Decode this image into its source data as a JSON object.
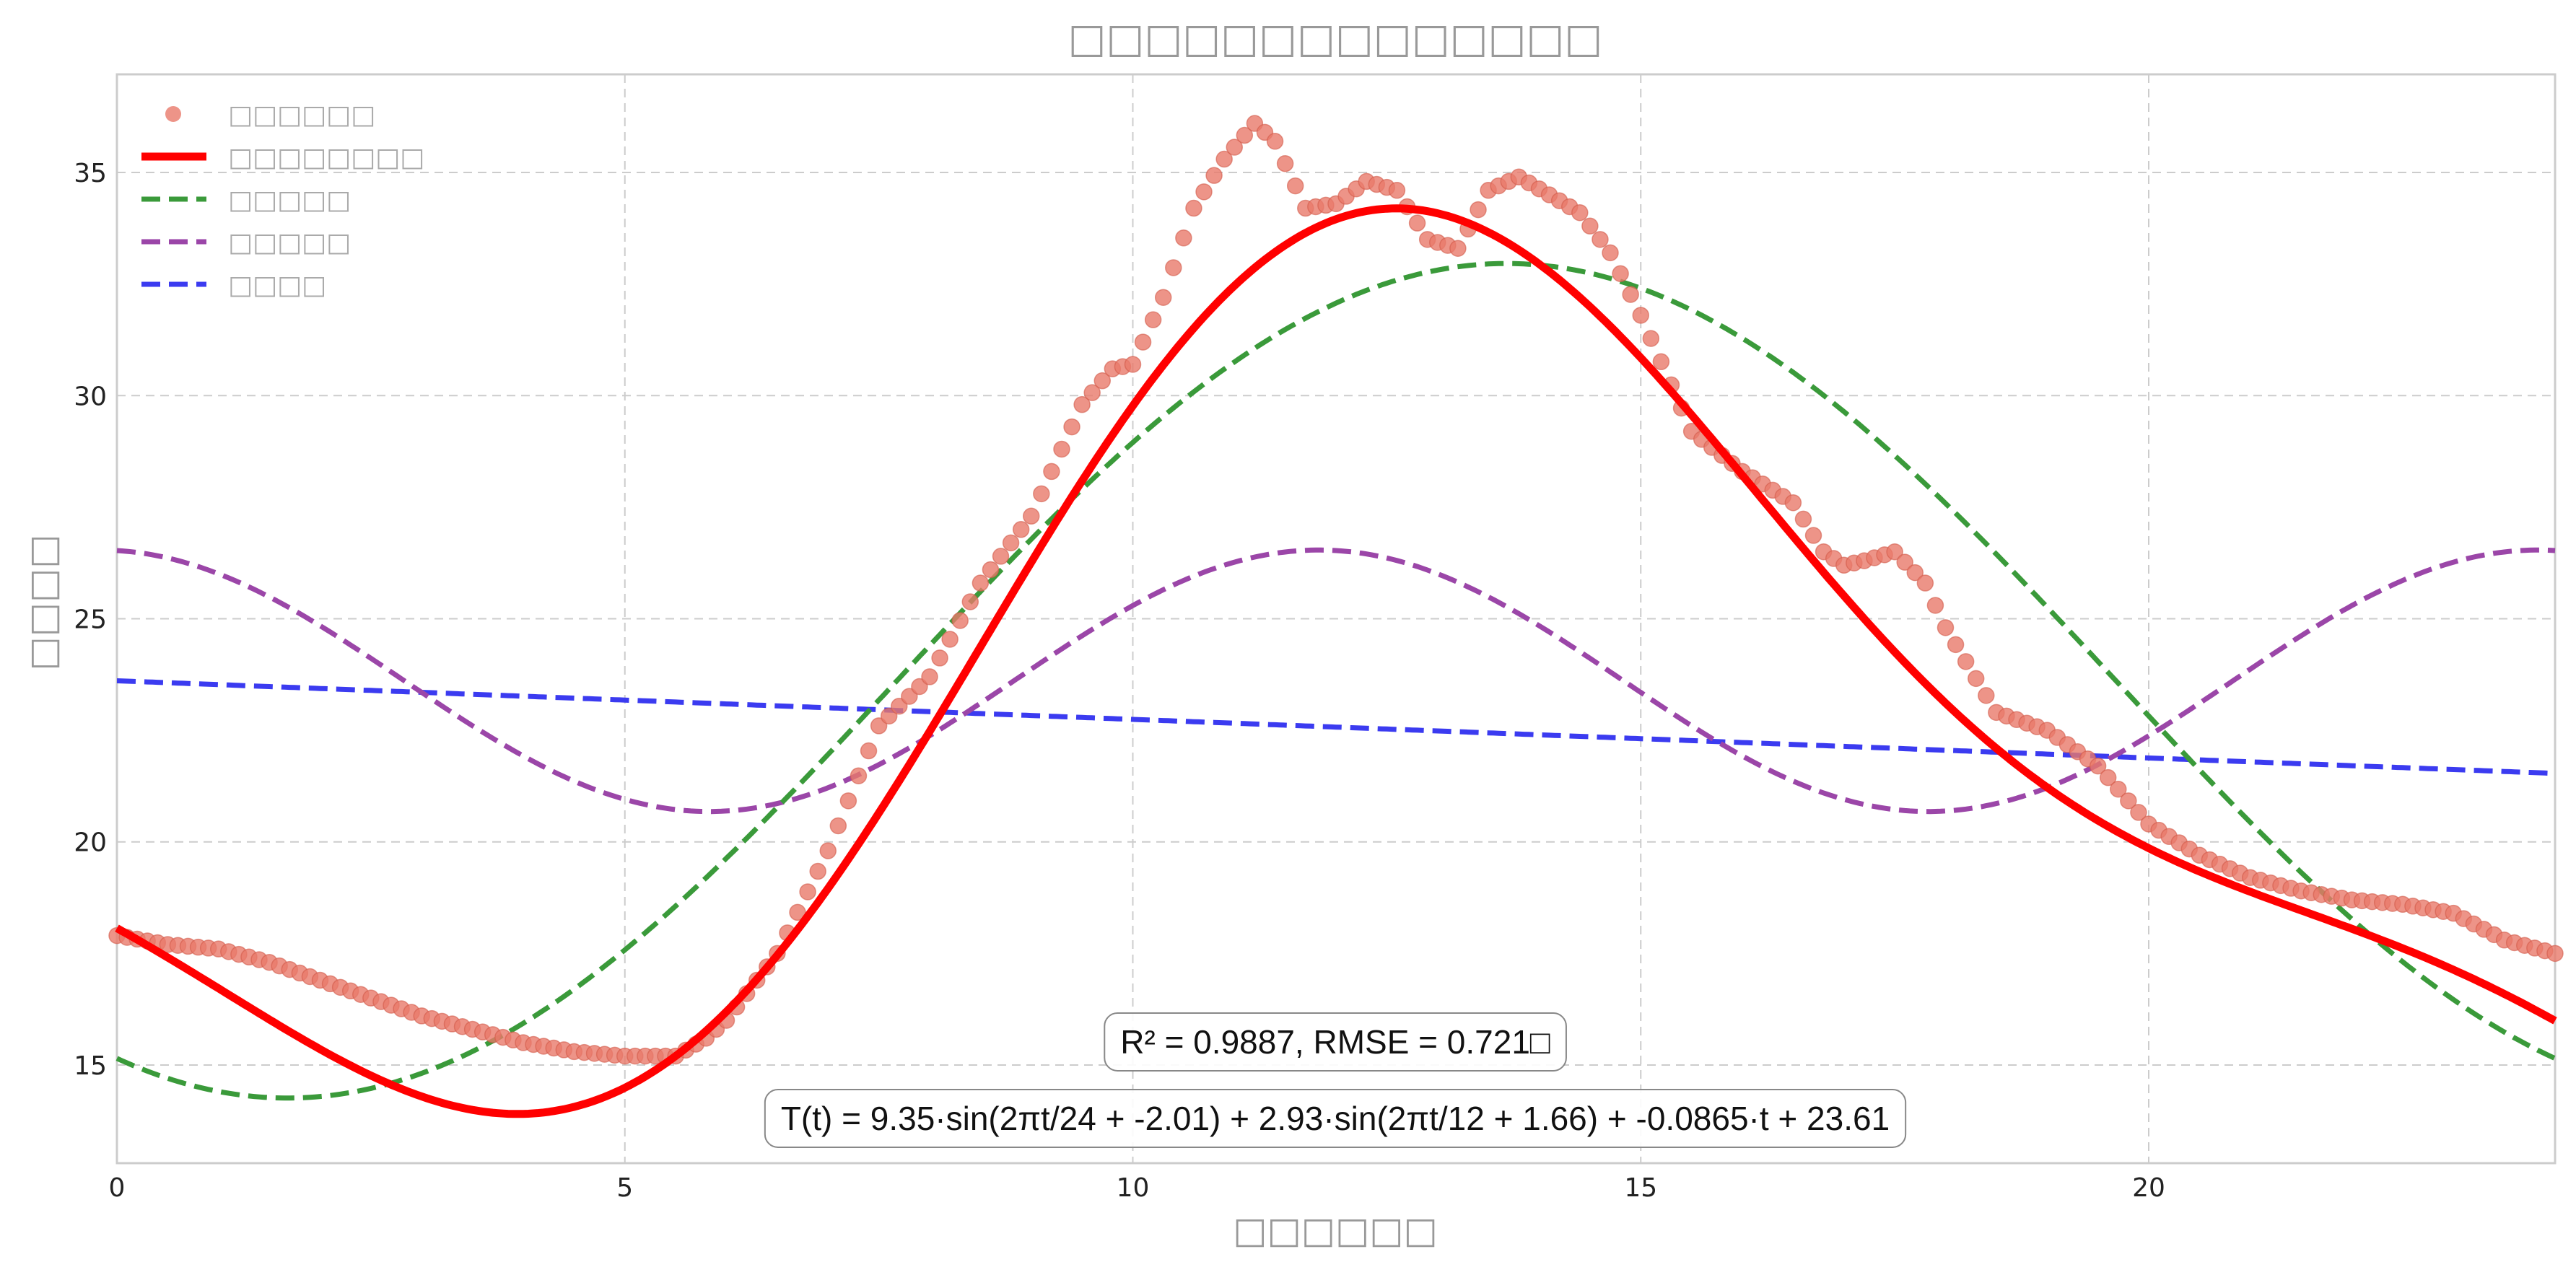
{
  "chart_data": {
    "type": "line",
    "title": "□□□□□□□□□□□□□□",
    "xlabel": "□□□□□□",
    "ylabel": "□□□□",
    "xlim": [
      0,
      24
    ],
    "ylim": [
      12.8,
      37.2
    ],
    "xticks": [
      0,
      5,
      10,
      15,
      20
    ],
    "yticks": [
      15,
      20,
      25,
      30,
      35
    ],
    "grid": true,
    "legend_position": "top-left",
    "colors": {
      "observed": "#e8796a",
      "fit": "#ff0000",
      "daily": "#3a9a3a",
      "semidaily": "#9b46a8",
      "trend": "#3b3bf0",
      "grid": "#cccccc",
      "frame": "#cccccc"
    },
    "legend": [
      {
        "key": "observed",
        "label": "□□□□□□",
        "style": "marker"
      },
      {
        "key": "fit",
        "label": "□□□□□□□□",
        "style": "thick"
      },
      {
        "key": "daily",
        "label": "□□□□□",
        "style": "dashed"
      },
      {
        "key": "semidaily",
        "label": "□□□□□",
        "style": "dashed"
      },
      {
        "key": "trend",
        "label": "□□□□",
        "style": "dashed"
      }
    ],
    "observed": {
      "x": [
        0,
        0.5,
        1,
        1.5,
        2,
        2.5,
        3,
        3.5,
        4,
        4.5,
        5,
        5.5,
        5.8,
        6,
        6.5,
        7,
        7.5,
        8,
        8.5,
        9,
        9.5,
        9.8,
        10,
        10.3,
        10.6,
        10.9,
        11.2,
        11.4,
        11.7,
        12,
        12.3,
        12.6,
        12.9,
        13.2,
        13.5,
        13.8,
        14.1,
        14.4,
        14.7,
        15,
        15.5,
        16,
        16.5,
        16.8,
        17,
        17.2,
        17.5,
        17.8,
        18,
        18.5,
        19,
        19.5,
        20,
        20.5,
        21,
        21.5,
        22,
        22.5,
        23,
        23.5,
        24
      ],
      "y": [
        17.9,
        17.7,
        17.6,
        17.3,
        16.9,
        16.5,
        16.1,
        15.8,
        15.5,
        15.3,
        15.2,
        15.2,
        15.6,
        16,
        17.5,
        19.8,
        22.6,
        23.7,
        25.8,
        27.3,
        29.8,
        30.6,
        30.7,
        32.2,
        34.2,
        35.3,
        36.1,
        35.7,
        34.2,
        34.3,
        34.8,
        34.6,
        33.5,
        33.3,
        34.6,
        34.9,
        34.5,
        34.1,
        33.2,
        31.8,
        29.2,
        28.3,
        27.6,
        26.5,
        26.2,
        26.3,
        26.5,
        25.8,
        24.8,
        22.9,
        22.5,
        21.7,
        20.4,
        19.7,
        19.2,
        18.9,
        18.7,
        18.6,
        18.4,
        17.8,
        17.5
      ]
    },
    "fit_formula": {
      "a": 9.35,
      "p1": -2.01,
      "b": 2.93,
      "p2": 1.66,
      "slope": -0.0865,
      "intercept": 23.61
    },
    "annotations": {
      "metrics": "R² = 0.9887, RMSE = 0.721□",
      "formula": "T(t) = 9.35·sin(2πt/24 + -2.01) + 2.93·sin(2πt/12 + 1.66) + -0.0865·t + 23.61"
    }
  }
}
